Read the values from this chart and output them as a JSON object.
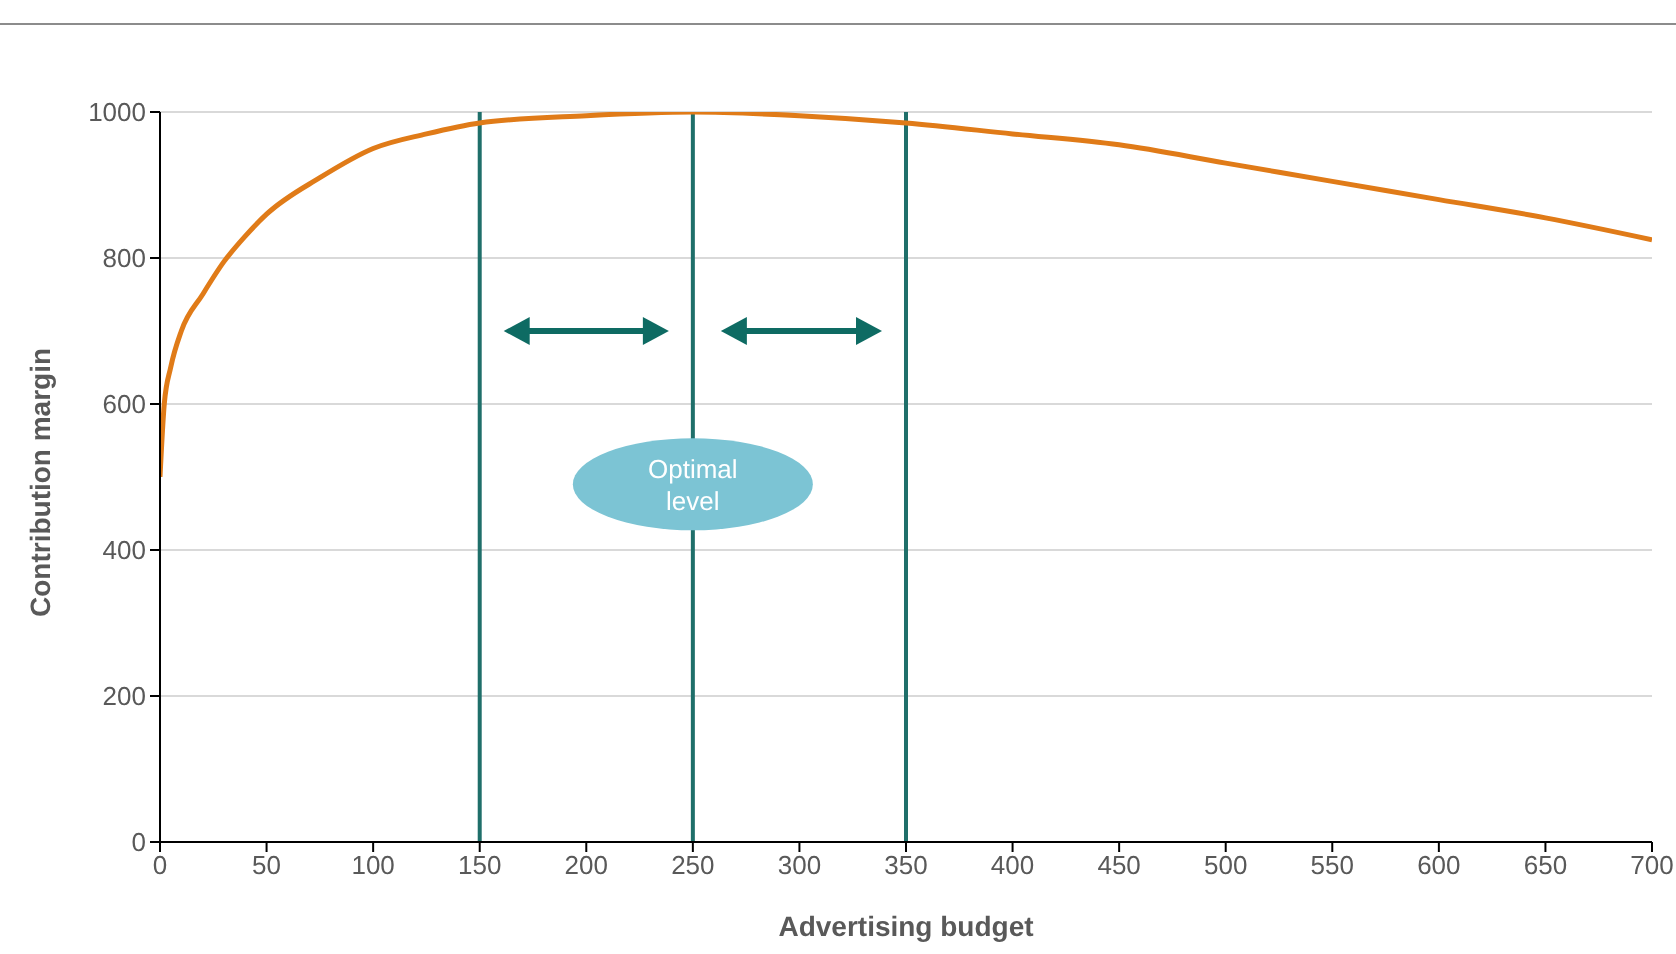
{
  "chart_data": {
    "type": "line",
    "xlabel": "Advertising budget",
    "ylabel": "Contribution margin",
    "x": [
      0,
      2,
      5,
      10,
      20,
      30,
      40,
      50,
      75,
      100,
      125,
      150,
      200,
      250,
      300,
      350,
      400,
      450,
      500,
      550,
      600,
      650,
      700
    ],
    "series": [
      {
        "color": "#e07b18",
        "values": [
          500,
          600,
          650,
          700,
          750,
          795,
          830,
          860,
          910,
          950,
          970,
          985,
          995,
          1000,
          995,
          985,
          970,
          955,
          930,
          905,
          880,
          855,
          825
        ]
      }
    ],
    "xlim": [
      0,
      700
    ],
    "xticks": [
      0,
      50,
      100,
      150,
      200,
      250,
      300,
      350,
      400,
      450,
      500,
      550,
      600,
      650,
      700
    ],
    "ylim": [
      0,
      1000
    ],
    "yticks": [
      0,
      200,
      400,
      600,
      800,
      1000
    ],
    "grid": "y",
    "legend": false,
    "marker": "none",
    "line_style": "solid",
    "ref_lines": [
      {
        "axis": "x",
        "value": 150,
        "color": "#1f6f6a"
      },
      {
        "axis": "x",
        "value": 250,
        "color": "#1f6f6a"
      },
      {
        "axis": "x",
        "value": 350,
        "color": "#1f6f6a"
      }
    ],
    "annotations": [
      {
        "text": "Optimal level",
        "x": 250,
        "y": 490
      }
    ]
  }
}
